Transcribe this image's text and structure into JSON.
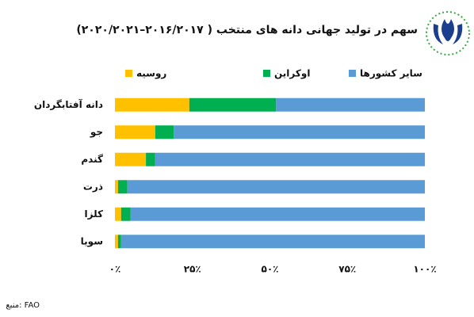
{
  "chart_data": {
    "type": "stacked-bar-horizontal",
    "title": "سهم در تولید جهانی دانه های منتخب ( ۲۰۱۶/۲۰۱۷–۲۰۲۰/۲۰۲۱)",
    "source": "منبع: FAO",
    "categories": [
      "دانه آفتابگردان",
      "جو",
      "گندم",
      "ذرت",
      "کلزا",
      "سویا"
    ],
    "series": [
      {
        "name": "روسیه",
        "color": "#FFC000",
        "values": [
          24,
          13,
          10,
          1,
          2,
          1
        ]
      },
      {
        "name": "اوکراین",
        "color": "#00B050",
        "values": [
          28,
          6,
          3,
          3,
          3,
          1
        ]
      },
      {
        "name": "سایر کشورها",
        "color": "#5B9BD5",
        "values": [
          48,
          81,
          87,
          96,
          95,
          98
        ]
      }
    ],
    "xlim": [
      0,
      100
    ],
    "xticks": [
      {
        "value": 0,
        "label": "۰٪"
      },
      {
        "value": 25,
        "label": "۲۵٪"
      },
      {
        "value": 50,
        "label": "۵۰٪"
      },
      {
        "value": 75,
        "label": "۷۵٪"
      },
      {
        "value": 100,
        "label": "۱۰۰٪"
      }
    ],
    "grid": false,
    "legend": "top"
  }
}
